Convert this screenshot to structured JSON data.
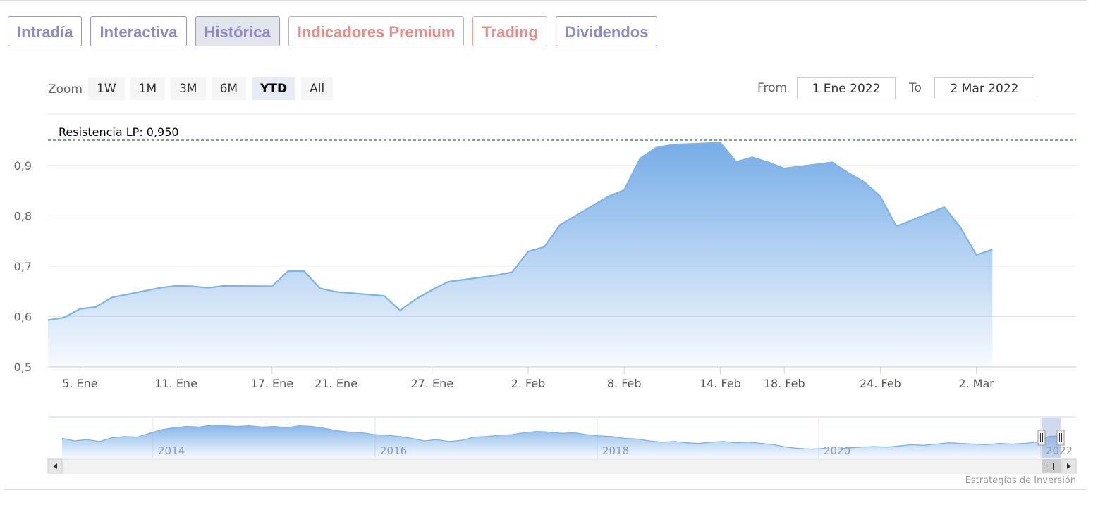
{
  "tabs": [
    {
      "label": "Intradía",
      "active": false,
      "color": "#8d89c2"
    },
    {
      "label": "Interactiva",
      "active": false,
      "color": "#8d89c2"
    },
    {
      "label": "Histórica",
      "active": true,
      "color": "#8d89c2"
    },
    {
      "label": "Indicadores Premium",
      "active": false,
      "color": "#e38e89"
    },
    {
      "label": "Trading",
      "active": false,
      "color": "#e38e89"
    },
    {
      "label": "Dividendos",
      "active": false,
      "color": "#8d89c2"
    }
  ],
  "zoom": {
    "label": "Zoom",
    "buttons": [
      "1W",
      "1M",
      "3M",
      "6M",
      "YTD",
      "All"
    ],
    "selected": "YTD"
  },
  "range": {
    "from_label": "From",
    "from_value": "1 Ene 2022",
    "to_label": "To",
    "to_value": "2 Mar 2022"
  },
  "chart_data": {
    "type": "area",
    "x": [
      "2022-01-03",
      "2022-01-04",
      "2022-01-05",
      "2022-01-06",
      "2022-01-07",
      "2022-01-10",
      "2022-01-11",
      "2022-01-12",
      "2022-01-13",
      "2022-01-14",
      "2022-01-17",
      "2022-01-18",
      "2022-01-19",
      "2022-01-20",
      "2022-01-21",
      "2022-01-24",
      "2022-01-25",
      "2022-01-26",
      "2022-01-27",
      "2022-01-28",
      "2022-01-31",
      "2022-02-01",
      "2022-02-02",
      "2022-02-03",
      "2022-02-04",
      "2022-02-07",
      "2022-02-08",
      "2022-02-09",
      "2022-02-10",
      "2022-02-11",
      "2022-02-14",
      "2022-02-15",
      "2022-02-16",
      "2022-02-17",
      "2022-02-18",
      "2022-02-21",
      "2022-02-22",
      "2022-02-23",
      "2022-02-24",
      "2022-02-25",
      "2022-02-28",
      "2022-03-01",
      "2022-03-02",
      "2022-03-03"
    ],
    "y": [
      0.593,
      0.598,
      0.615,
      0.619,
      0.638,
      0.657,
      0.661,
      0.66,
      0.657,
      0.661,
      0.66,
      0.69,
      0.69,
      0.656,
      0.649,
      0.641,
      0.612,
      0.635,
      0.653,
      0.669,
      0.682,
      0.688,
      0.729,
      0.738,
      0.782,
      0.838,
      0.851,
      0.914,
      0.935,
      0.941,
      0.945,
      0.907,
      0.916,
      0.906,
      0.894,
      0.906,
      0.885,
      0.867,
      0.838,
      0.779,
      0.817,
      0.777,
      0.722,
      0.733
    ],
    "ylim": [
      0.5,
      0.95
    ],
    "yticks": [
      "0,5",
      "0,6",
      "0,7",
      "0,8",
      "0,9"
    ],
    "ytick_values": [
      0.5,
      0.6,
      0.7,
      0.8,
      0.9
    ],
    "xticks": [
      "5. Ene",
      "11. Ene",
      "17. Ene",
      "21. Ene",
      "27. Ene",
      "2. Feb",
      "8. Feb",
      "14. Feb",
      "18. Feb",
      "24. Feb",
      "2. Mar"
    ],
    "xtick_dates": [
      "2022-01-05",
      "2022-01-11",
      "2022-01-17",
      "2022-01-21",
      "2022-01-27",
      "2022-02-02",
      "2022-02-08",
      "2022-02-14",
      "2022-02-18",
      "2022-02-24",
      "2022-03-02"
    ],
    "annotation": {
      "label": "Resistencia LP: 0,950",
      "value": 0.95,
      "color": "#1e7a2e"
    },
    "line_color": "#7cb3e8",
    "fill_color": "#6fa8e6",
    "grid": true
  },
  "navigator": {
    "years": [
      "2014",
      "2016",
      "2018",
      "2020",
      "2022"
    ],
    "series": [
      0.52,
      0.48,
      0.5,
      0.47,
      0.53,
      0.55,
      0.54,
      0.6,
      0.66,
      0.69,
      0.71,
      0.7,
      0.73,
      0.72,
      0.71,
      0.72,
      0.7,
      0.71,
      0.69,
      0.72,
      0.71,
      0.68,
      0.64,
      0.62,
      0.61,
      0.58,
      0.57,
      0.55,
      0.52,
      0.48,
      0.5,
      0.47,
      0.49,
      0.54,
      0.55,
      0.57,
      0.58,
      0.61,
      0.63,
      0.62,
      0.6,
      0.61,
      0.58,
      0.56,
      0.55,
      0.52,
      0.51,
      0.48,
      0.46,
      0.47,
      0.45,
      0.44,
      0.46,
      0.47,
      0.45,
      0.46,
      0.44,
      0.42,
      0.38,
      0.36,
      0.35,
      0.36,
      0.35,
      0.37,
      0.38,
      0.39,
      0.38,
      0.4,
      0.42,
      0.41,
      0.43,
      0.45,
      0.44,
      0.43,
      0.42,
      0.44,
      0.43,
      0.44,
      0.46,
      0.55,
      0.56
    ]
  },
  "credit": "Estrategias de Inversión"
}
